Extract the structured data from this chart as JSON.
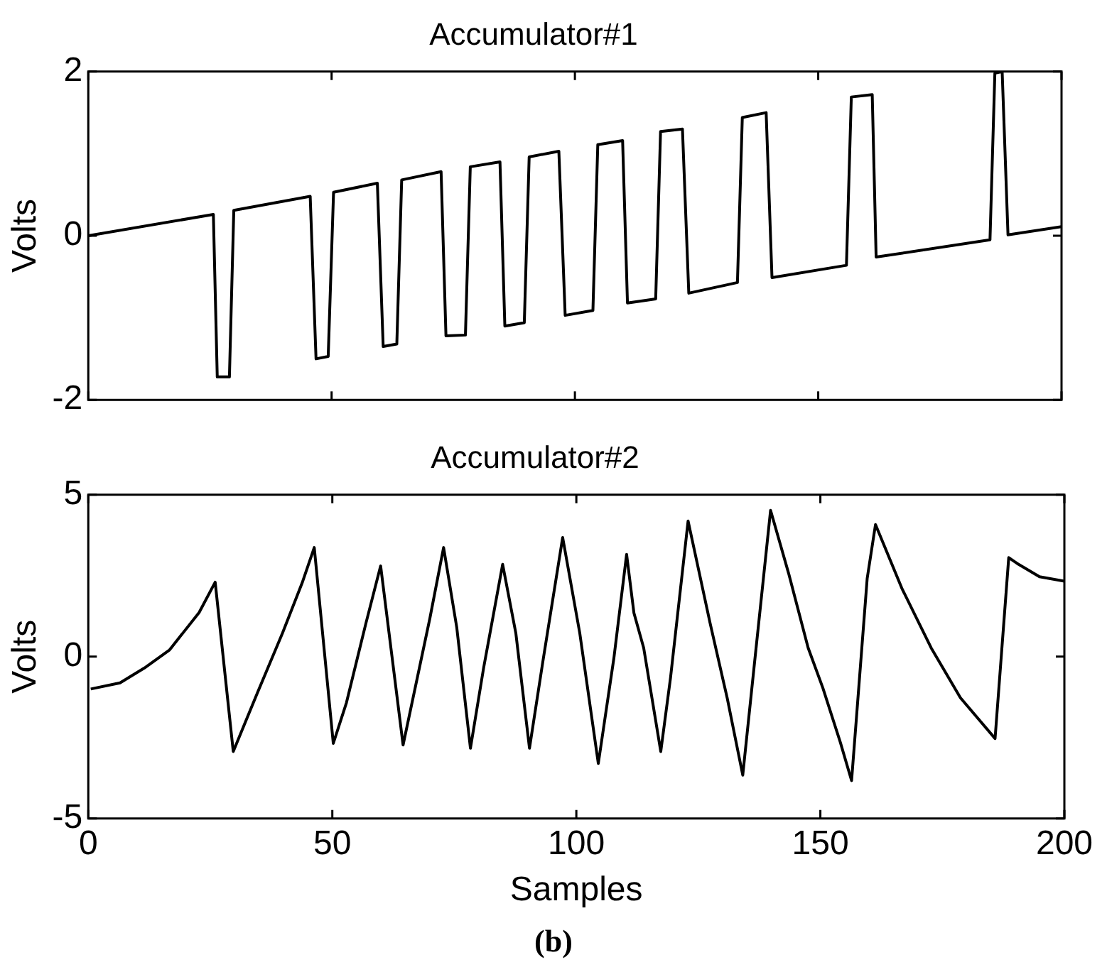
{
  "chart_data": [
    {
      "type": "line",
      "title": "Accumulator#1",
      "ylabel": "Volts",
      "xlim": [
        0,
        200
      ],
      "xticks": [
        {
          "value": 0,
          "label": null
        },
        {
          "value": 50,
          "label": null
        },
        {
          "value": 100,
          "label": null
        },
        {
          "value": 150,
          "label": null
        },
        {
          "value": 200,
          "label": null
        }
      ],
      "ylim": [
        -2,
        2
      ],
      "yticks": [
        -2,
        0,
        2
      ],
      "tick_labels": "y",
      "grid": false,
      "legend": false,
      "marker": "none",
      "line_style": "solid",
      "series": [
        {
          "color": "#000000",
          "x": [
            0,
            25.7,
            26.5,
            29,
            29.9,
            45.6,
            46.8,
            49.3,
            50.4,
            59.4,
            60.6,
            63.4,
            64.4,
            72.5,
            73.5,
            77.5,
            78.5,
            84.6,
            85.6,
            89.6,
            90.6,
            96.7,
            98,
            103.7,
            104.7,
            109.8,
            110.8,
            116.6,
            117.6,
            122.1,
            123.4,
            133.4,
            134.4,
            139.3,
            140.5,
            155.8,
            156.8,
            161.1,
            161.9,
            185.3,
            186.3,
            187.8,
            189,
            200
          ],
          "values": [
            0,
            0.26,
            -1.72,
            -1.72,
            0.31,
            0.48,
            -1.5,
            -1.47,
            0.53,
            0.64,
            -1.35,
            -1.32,
            0.68,
            0.78,
            -1.22,
            -1.21,
            0.84,
            0.9,
            -1.1,
            -1.06,
            0.96,
            1.03,
            -0.97,
            -0.91,
            1.11,
            1.16,
            -0.82,
            -0.77,
            1.27,
            1.3,
            -0.7,
            -0.57,
            1.44,
            1.5,
            -0.51,
            -0.36,
            1.69,
            1.72,
            -0.26,
            -0.05,
            1.98,
            2,
            0.01,
            0.11
          ]
        }
      ]
    },
    {
      "type": "line",
      "title": "Accumulator#2",
      "xlabel": "Samples",
      "ylabel": "Volts",
      "xlim": [
        0,
        200
      ],
      "xticks": [
        0,
        50,
        100,
        150,
        200
      ],
      "ylim": [
        -5,
        5
      ],
      "yticks": [
        -5,
        0,
        5
      ],
      "grid": false,
      "legend": false,
      "marker": "none",
      "line_style": "solid",
      "annotations": [
        "(b)"
      ],
      "series": [
        {
          "color": "#000000",
          "x": [
            0.5,
            6.5,
            11.5,
            16.6,
            22.7,
            26,
            29.7,
            34.7,
            39.8,
            43.8,
            46.3,
            50.2,
            52.9,
            56.9,
            59.9,
            64.5,
            70,
            72.8,
            75.5,
            78.3,
            81,
            84.9,
            87.6,
            90.4,
            93.1,
            97.2,
            100.7,
            104.5,
            107.7,
            110.3,
            111.8,
            113.8,
            117.3,
            119.3,
            122.9,
            127.4,
            130.9,
            134.1,
            136.4,
            139.8,
            143.5,
            147.5,
            150.5,
            154.1,
            156.4,
            159.6,
            161.3,
            166.7,
            172.7,
            178.7,
            185.8,
            188.6,
            190.3,
            194.9,
            200
          ],
          "values": [
            -1,
            -0.81,
            -0.35,
            0.2,
            1.36,
            2.3,
            -2.93,
            -1.1,
            0.73,
            2.27,
            3.37,
            -2.68,
            -1.42,
            1.04,
            2.8,
            -2.73,
            1.19,
            3.37,
            0.9,
            -2.83,
            -0.35,
            2.85,
            0.73,
            -2.83,
            -0.19,
            3.68,
            0.73,
            -3.3,
            -0.04,
            3.16,
            1.35,
            0.27,
            -2.93,
            -0.65,
            4.19,
            1.04,
            -1.27,
            -3.66,
            -0.35,
            4.52,
            2.57,
            0.27,
            -0.96,
            -2.65,
            -3.83,
            2.42,
            4.08,
            2.11,
            0.27,
            -1.27,
            -2.53,
            3.06,
            2.88,
            2.47,
            2.33
          ]
        }
      ]
    }
  ]
}
